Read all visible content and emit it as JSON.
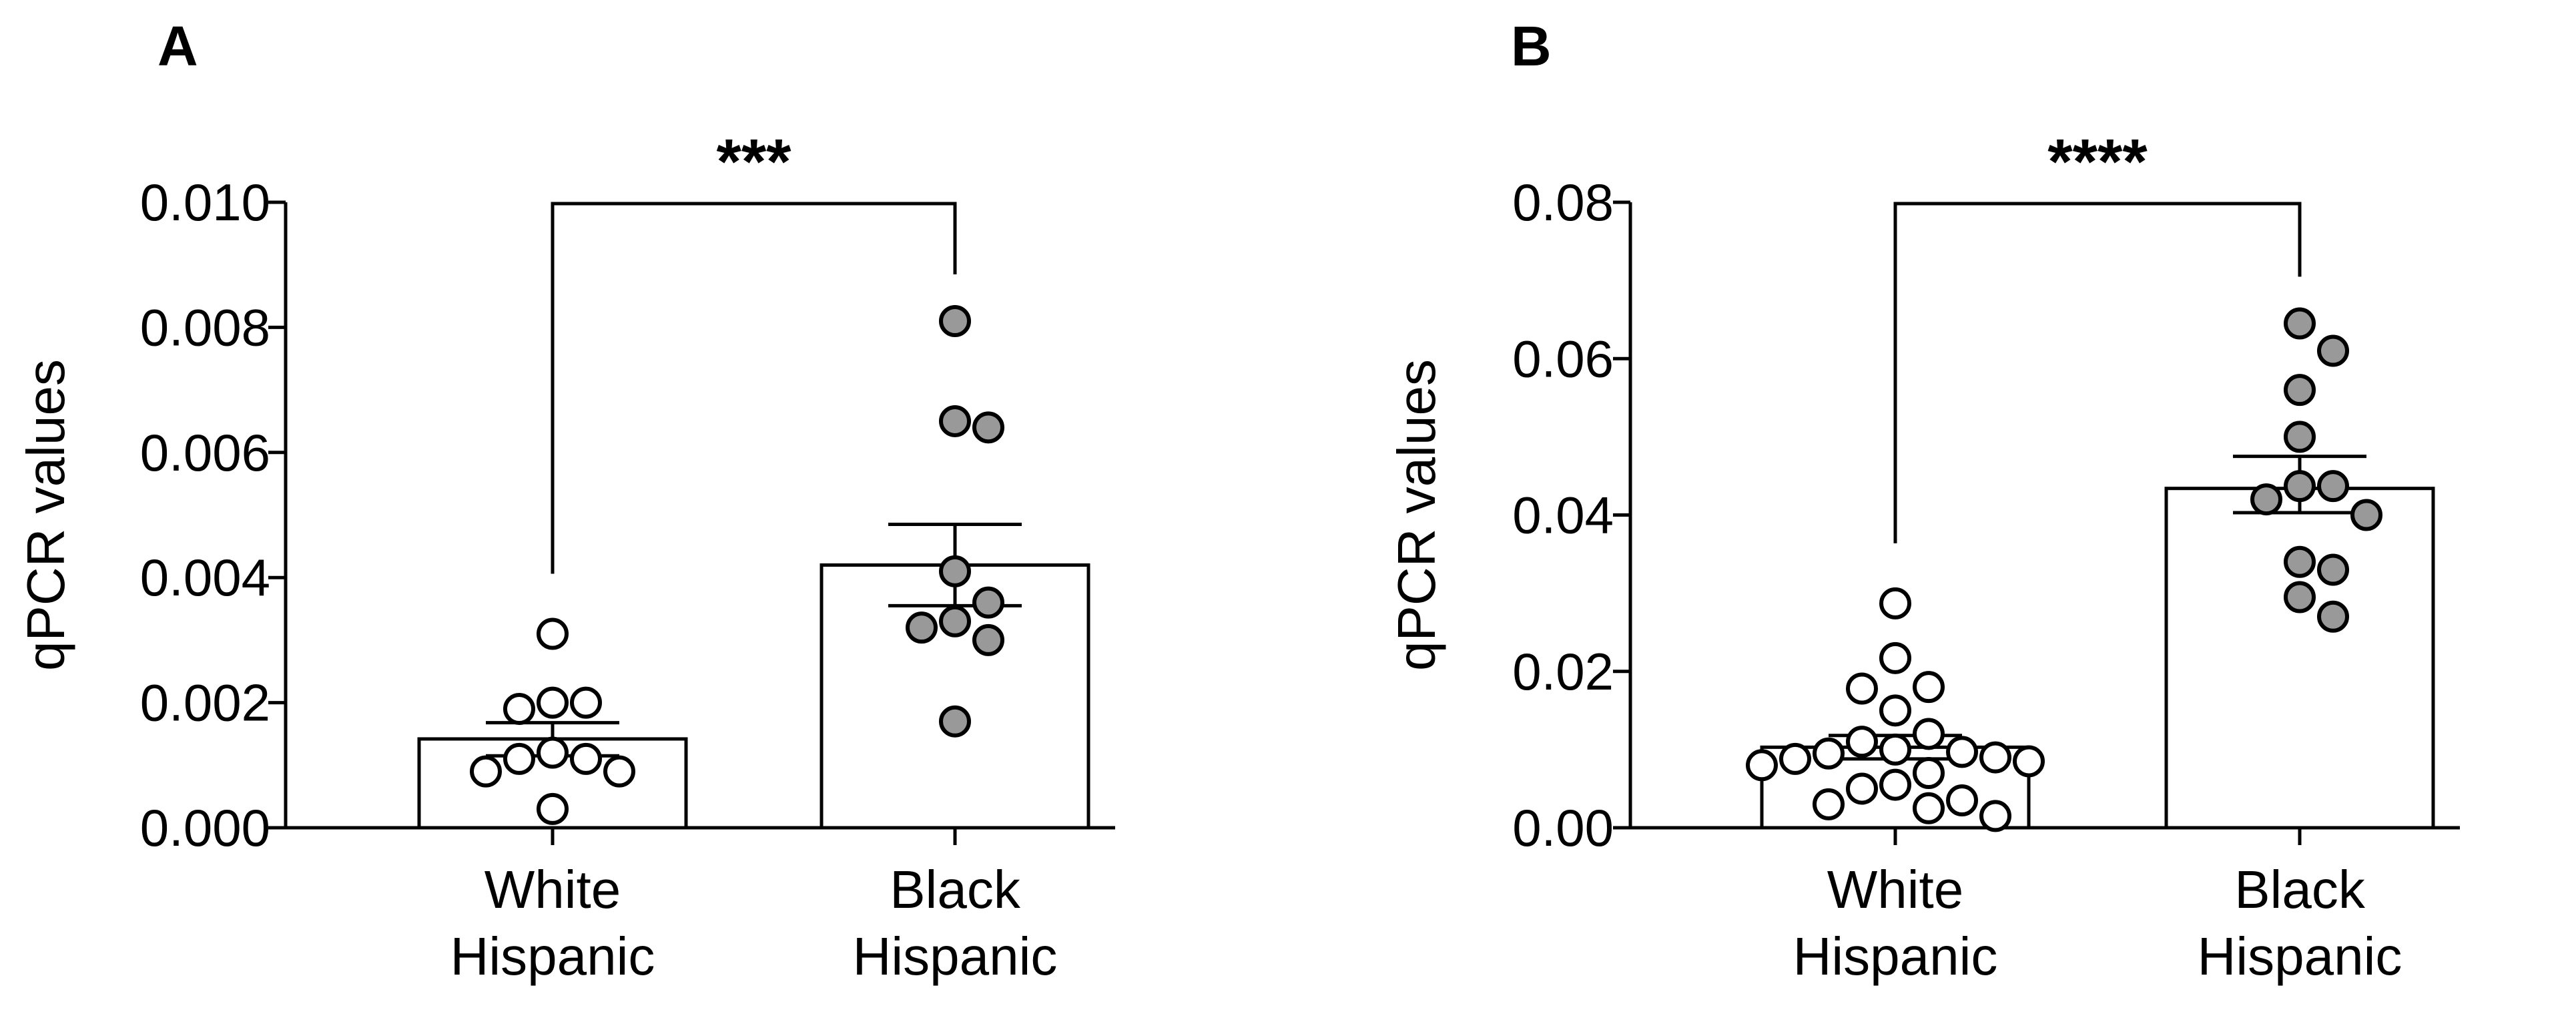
{
  "chart_data": [
    {
      "panel": "A",
      "type": "bar",
      "ylabel": "qPCR values",
      "ylim": [
        0,
        0.01
      ],
      "yticks": [
        "0.000",
        "0.002",
        "0.004",
        "0.006",
        "0.008",
        "0.010"
      ],
      "categories": [
        {
          "lines": [
            "White",
            "Hispanic"
          ],
          "mean": 0.00142,
          "sem_low": 0.00115,
          "sem_high": 0.00168,
          "fill": "#ffffff",
          "points": [
            0.0031,
            0.002,
            0.002,
            0.0019,
            0.0012,
            0.0011,
            0.0011,
            0.0009,
            0.0009,
            0.0003
          ]
        },
        {
          "lines": [
            "Black",
            "Hispanic"
          ],
          "mean": 0.0042,
          "sem_low": 0.00355,
          "sem_high": 0.00485,
          "fill": "#999999",
          "points": [
            0.0081,
            0.0065,
            0.0064,
            0.0041,
            0.0036,
            0.0033,
            0.0032,
            0.003,
            0.0017
          ]
        }
      ],
      "significance": "***"
    },
    {
      "panel": "B",
      "type": "bar",
      "ylabel": "qPCR values",
      "ylim": [
        0,
        0.08
      ],
      "yticks": [
        "0.00",
        "0.02",
        "0.04",
        "0.06",
        "0.08"
      ],
      "categories": [
        {
          "lines": [
            "White",
            "Hispanic"
          ],
          "mean": 0.0103,
          "sem_low": 0.0088,
          "sem_high": 0.0118,
          "fill": "#ffffff",
          "points": [
            0.0287,
            0.0217,
            0.018,
            0.0178,
            0.015,
            0.012,
            0.011,
            0.01,
            0.0097,
            0.0095,
            0.009,
            0.0088,
            0.0085,
            0.008,
            0.007,
            0.0055,
            0.005,
            0.0035,
            0.003,
            0.0025,
            0.0015
          ]
        },
        {
          "lines": [
            "Black",
            "Hispanic"
          ],
          "mean": 0.0434,
          "sem_low": 0.0403,
          "sem_high": 0.0475,
          "fill": "#999999",
          "points": [
            0.0645,
            0.061,
            0.056,
            0.05,
            0.0437,
            0.0437,
            0.042,
            0.04,
            0.034,
            0.033,
            0.0295,
            0.027
          ]
        }
      ],
      "significance": "****"
    }
  ]
}
